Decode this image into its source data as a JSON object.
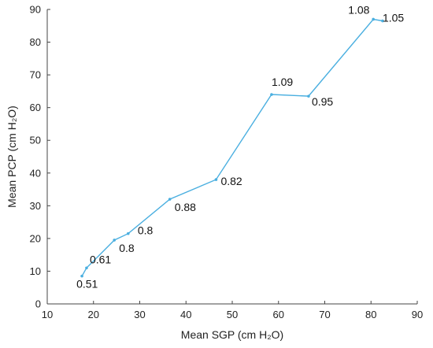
{
  "chart_data": {
    "type": "line",
    "title": "",
    "xlabel": "Mean SGP (cm H₂O)",
    "ylabel": "Mean PCP (cm H₂O)",
    "xlim": [
      10,
      90
    ],
    "ylim": [
      0,
      90
    ],
    "xticks": [
      10,
      20,
      30,
      40,
      50,
      60,
      70,
      80,
      90
    ],
    "yticks": [
      0,
      10,
      20,
      30,
      40,
      50,
      60,
      70,
      80,
      90
    ],
    "grid": false,
    "line_color": "#4aafe0",
    "series": [
      {
        "x": [
          17.5,
          18.5,
          24.5,
          27.5,
          36.5,
          46.5,
          58.5,
          66.5,
          80.5,
          82.5
        ],
        "y": [
          8.5,
          11,
          19.5,
          21.5,
          32,
          38,
          64,
          63.5,
          87,
          86.5
        ],
        "labels": [
          "0.51",
          "0.61",
          "0.8",
          "0.8",
          "0.88",
          "0.82",
          "1.09",
          "0.95",
          "1.08",
          "1.05"
        ]
      }
    ]
  }
}
